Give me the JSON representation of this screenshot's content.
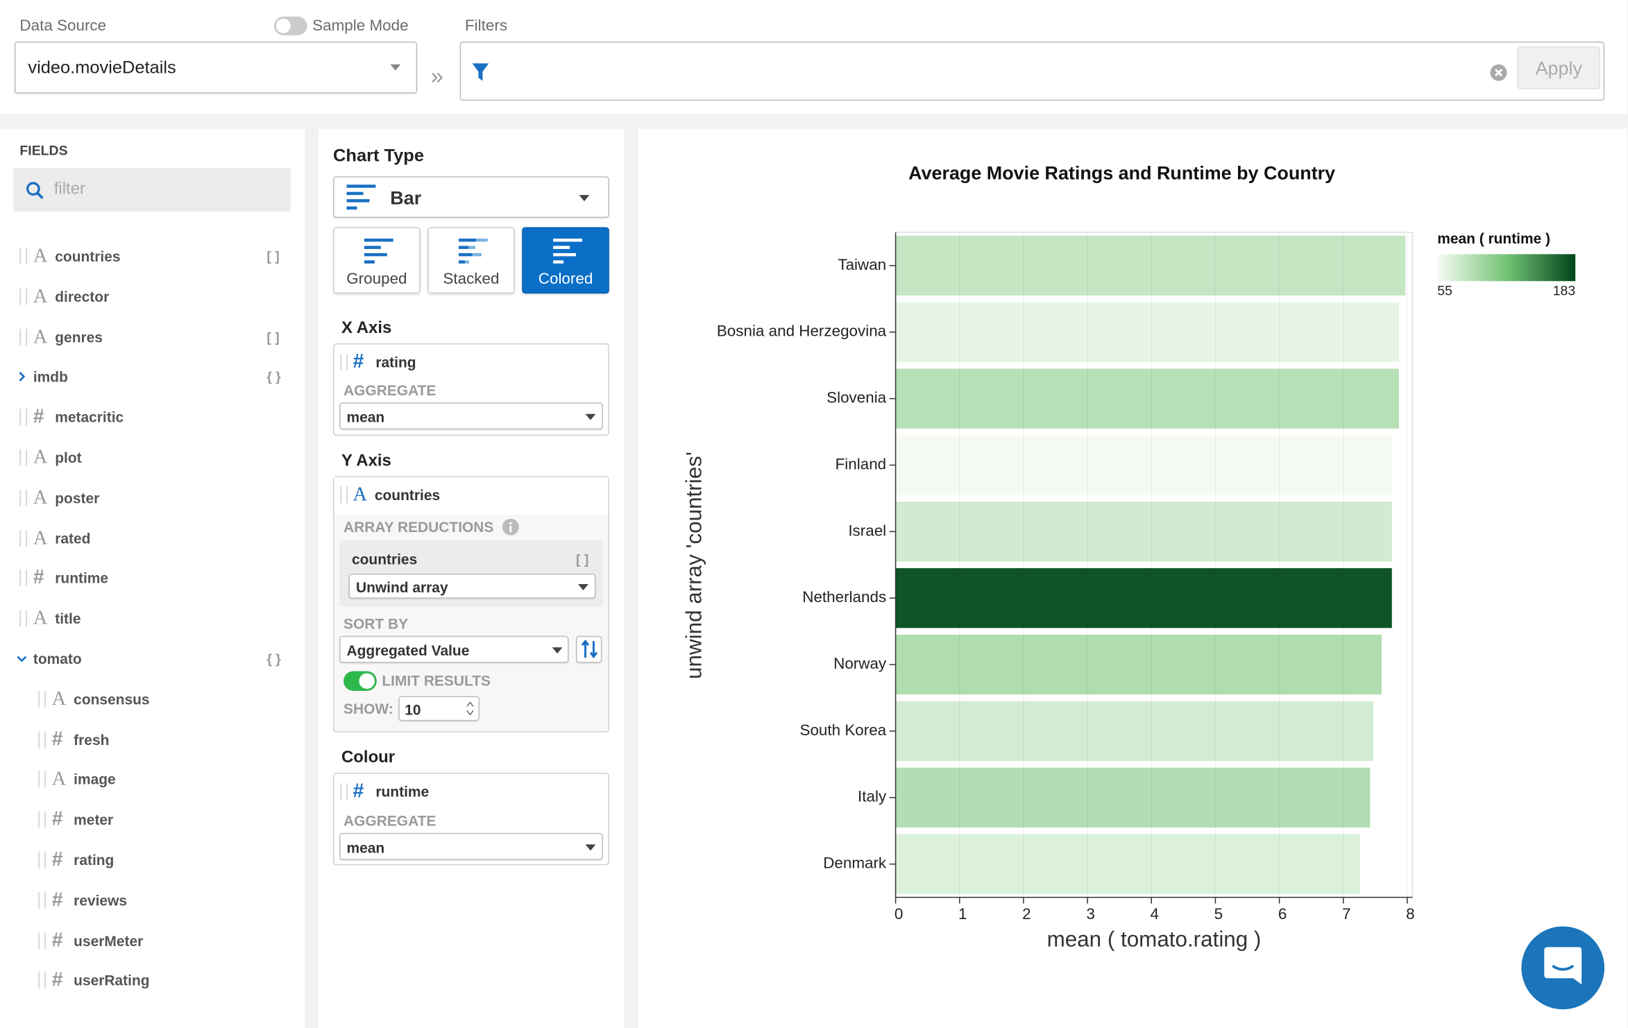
{
  "header": {
    "data_source_label": "Data Source",
    "data_source": "video.movieDetails",
    "sample_mode": "Sample Mode",
    "sample_mode_on": false,
    "filters_label": "Filters",
    "apply": "Apply"
  },
  "fields": {
    "title": "FIELDS",
    "filter_placeholder": "filter",
    "items": [
      {
        "name": "countries",
        "icon": "A",
        "badge": "[ ]"
      },
      {
        "name": "director",
        "icon": "A"
      },
      {
        "name": "genres",
        "icon": "A",
        "badge": "[ ]"
      },
      {
        "name": "imdb",
        "badge": "{ }",
        "expanded": false
      },
      {
        "name": "metacritic",
        "icon": "#"
      },
      {
        "name": "plot",
        "icon": "A"
      },
      {
        "name": "poster",
        "icon": "A"
      },
      {
        "name": "rated",
        "icon": "A"
      },
      {
        "name": "runtime",
        "icon": "#"
      },
      {
        "name": "title",
        "icon": "A"
      },
      {
        "name": "tomato",
        "badge": "{ }",
        "expanded": true,
        "children": [
          {
            "name": "consensus",
            "icon": "A"
          },
          {
            "name": "fresh",
            "icon": "#"
          },
          {
            "name": "image",
            "icon": "A"
          },
          {
            "name": "meter",
            "icon": "#"
          },
          {
            "name": "rating",
            "icon": "#"
          },
          {
            "name": "reviews",
            "icon": "#"
          },
          {
            "name": "userMeter",
            "icon": "#"
          },
          {
            "name": "userRating",
            "icon": "#"
          }
        ]
      }
    ]
  },
  "config": {
    "chart_type_label": "Chart Type",
    "chart_type": "Bar",
    "subtypes": [
      "Grouped",
      "Stacked",
      "Colored"
    ],
    "selected_subtype": 2,
    "x_axis": {
      "label": "X Axis",
      "icon": "#",
      "field": "rating",
      "aggregate_label": "AGGREGATE",
      "aggregate": "mean"
    },
    "y_axis": {
      "label": "Y Axis",
      "icon": "A",
      "field": "countries",
      "array_reductions_label": "ARRAY REDUCTIONS",
      "reduction_field": "countries",
      "reduction_badge": "[ ]",
      "reduction": "Unwind array",
      "sort_by_label": "SORT BY",
      "sort_by": "Aggregated Value",
      "limit_results_label": "LIMIT RESULTS",
      "limit_results": true,
      "show_label": "SHOW:",
      "show": 10
    },
    "colour": {
      "label": "Colour",
      "icon": "#",
      "field": "runtime",
      "aggregate_label": "AGGREGATE",
      "aggregate": "mean"
    }
  },
  "chart_data": {
    "type": "bar",
    "orientation": "horizontal",
    "title": "Average Movie Ratings and Runtime by Country",
    "x_label": "mean ( tomato.rating )",
    "y_label": "unwind array 'countries'",
    "categories": [
      "Taiwan",
      "Bosnia and Herzegovina",
      "Slovenia",
      "Finland",
      "Israel",
      "Netherlands",
      "Norway",
      "South Korea",
      "Italy",
      "Denmark"
    ],
    "values": [
      7.97,
      7.87,
      7.87,
      7.76,
      7.76,
      7.76,
      7.6,
      7.47,
      7.42,
      7.26
    ],
    "color_values": [
      80,
      63,
      87,
      56,
      74,
      175,
      90,
      73,
      89,
      68
    ],
    "color_scale": {
      "title": "mean ( runtime )",
      "domain": [
        55,
        183
      ],
      "colors": [
        "#f7fcf5",
        "#74c476",
        "#00441b"
      ]
    },
    "xlim": [
      0,
      8
    ],
    "xticks": [
      0,
      1,
      2,
      3,
      4,
      5,
      6,
      7,
      8
    ],
    "grid": true
  }
}
